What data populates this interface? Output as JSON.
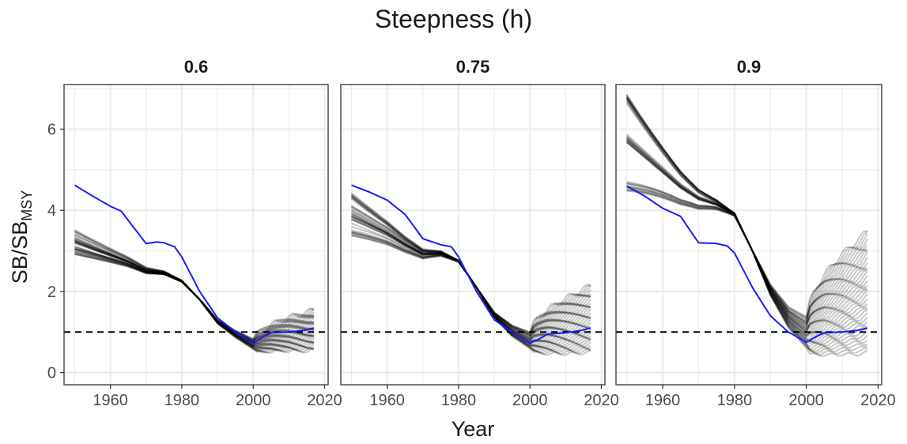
{
  "chart_data": {
    "type": "line",
    "title": "Steepness (h)",
    "xlabel": "Year",
    "ylabel_main": "SB/SB",
    "ylabel_sub": "MSY",
    "xlim": [
      1947,
      2021
    ],
    "ylim": [
      -0.3,
      7.1
    ],
    "x_ticks": [
      1960,
      1980,
      2000,
      2020
    ],
    "y_ticks": [
      0,
      2,
      4,
      6
    ],
    "reference_line": {
      "y": 1,
      "style": "dashed",
      "color": "#000000"
    },
    "colors": {
      "base_case": "#1a1aff",
      "ensemble": "#000000",
      "grid": "#ebebeb",
      "panel_border": "#333333"
    },
    "panels": [
      {
        "label": "0.6",
        "base_case": {
          "x": [
            1950,
            1955,
            1960,
            1963,
            1965,
            1970,
            1973,
            1975,
            1978,
            1980,
            1985,
            1990,
            1995,
            2000,
            2003,
            2005,
            2010,
            2015,
            2017
          ],
          "y": [
            4.62,
            4.35,
            4.1,
            3.98,
            3.75,
            3.18,
            3.22,
            3.2,
            3.1,
            2.85,
            2.0,
            1.35,
            1.0,
            0.72,
            0.9,
            0.98,
            1.0,
            1.05,
            1.1
          ]
        },
        "ensemble": {
          "starts": [
            3.4,
            3.3,
            3.2,
            3.1,
            3.0,
            2.95
          ],
          "x": [
            1950,
            1955,
            1960,
            1965,
            1970,
            1975,
            1980,
            1985,
            1990,
            1995,
            2000,
            2005,
            2010,
            2015,
            2017
          ],
          "y": [
            3.15,
            3.0,
            2.85,
            2.7,
            2.5,
            2.45,
            2.25,
            1.8,
            1.25,
            0.95,
            0.7,
            0.85,
            0.95,
            1.0,
            1.05
          ],
          "final_range": [
            0.55,
            1.55
          ]
        }
      },
      {
        "label": "0.75",
        "base_case": {
          "x": [
            1950,
            1955,
            1960,
            1965,
            1970,
            1975,
            1978,
            1980,
            1985,
            1990,
            1995,
            2000,
            2003,
            2005,
            2010,
            2015,
            2017
          ],
          "y": [
            4.62,
            4.45,
            4.25,
            3.9,
            3.3,
            3.15,
            3.1,
            2.85,
            2.0,
            1.3,
            1.0,
            0.72,
            0.85,
            0.95,
            0.98,
            1.05,
            1.1
          ]
        },
        "ensemble": {
          "starts": [
            4.35,
            4.0,
            3.8,
            3.5
          ],
          "x": [
            1950,
            1955,
            1960,
            1965,
            1970,
            1975,
            1980,
            1985,
            1990,
            1995,
            2000,
            2005,
            2010,
            2015,
            2017
          ],
          "y": [
            4.0,
            3.75,
            3.5,
            3.2,
            2.95,
            2.95,
            2.75,
            2.1,
            1.4,
            1.0,
            0.75,
            0.9,
            1.0,
            1.1,
            1.15
          ],
          "final_range": [
            0.5,
            2.15
          ]
        }
      },
      {
        "label": "0.9",
        "base_case": {
          "x": [
            1950,
            1955,
            1960,
            1965,
            1970,
            1975,
            1978,
            1980,
            1985,
            1990,
            1995,
            2000,
            2003,
            2005,
            2010,
            2015,
            2017
          ],
          "y": [
            4.6,
            4.35,
            4.05,
            3.85,
            3.2,
            3.18,
            3.12,
            2.95,
            2.1,
            1.4,
            1.0,
            0.75,
            0.9,
            0.98,
            1.0,
            1.05,
            1.1
          ]
        },
        "ensemble": {
          "starts": [
            6.8,
            6.7,
            5.75,
            5.7,
            4.6,
            4.55
          ],
          "x": [
            1950,
            1955,
            1960,
            1965,
            1970,
            1975,
            1980,
            1985,
            1990,
            1995,
            2000,
            2005,
            2010,
            2015,
            2017
          ],
          "y": [
            5.8,
            5.4,
            5.0,
            4.6,
            4.3,
            4.15,
            3.9,
            3.0,
            2.0,
            1.3,
            0.9,
            1.2,
            1.4,
            1.55,
            1.65
          ],
          "final_range": [
            0.5,
            3.5
          ]
        }
      }
    ]
  }
}
